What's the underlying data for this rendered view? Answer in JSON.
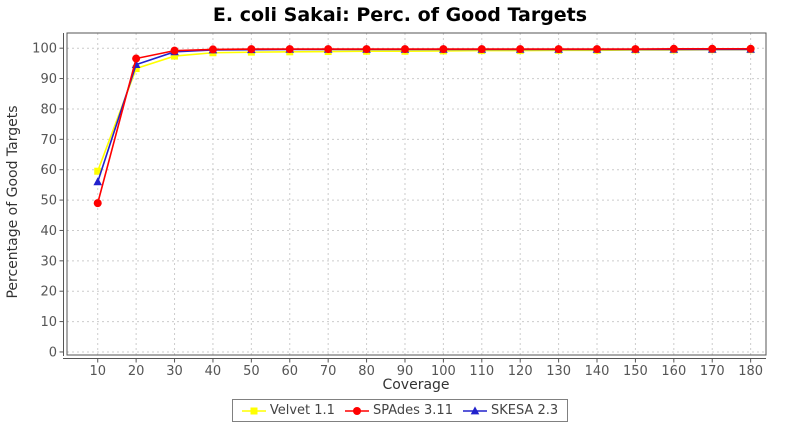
{
  "title": "E. coli Sakai: Perc. of Good Targets",
  "chart_data": {
    "type": "line",
    "title": "E. coli Sakai: Perc. of Good Targets",
    "xlabel": "Coverage",
    "ylabel": "Percentage of Good Targets",
    "x": [
      10,
      20,
      30,
      40,
      50,
      60,
      70,
      80,
      90,
      100,
      110,
      120,
      130,
      140,
      150,
      160,
      170,
      180
    ],
    "xticks": [
      10,
      20,
      30,
      40,
      50,
      60,
      70,
      80,
      90,
      100,
      110,
      120,
      130,
      140,
      150,
      160,
      170,
      180
    ],
    "yticks": [
      0,
      10,
      20,
      30,
      40,
      50,
      60,
      70,
      80,
      90,
      100
    ],
    "xlim": [
      2,
      184
    ],
    "ylim": [
      -1,
      105
    ],
    "grid": true,
    "legend_position": "bottom",
    "draw_order": [
      0,
      2,
      1
    ],
    "series": [
      {
        "name": "Velvet 1.1",
        "marker": "square",
        "color": "#FFFF00",
        "values": [
          59.5,
          93.3,
          97.4,
          98.5,
          98.7,
          98.8,
          98.9,
          99.0,
          99.0,
          99.1,
          99.2,
          99.2,
          99.3,
          99.3,
          99.4,
          99.4,
          99.5,
          99.5
        ]
      },
      {
        "name": "SPAdes 3.11",
        "marker": "circle",
        "color": "#FF0000",
        "values": [
          49.0,
          96.6,
          99.2,
          99.6,
          99.7,
          99.7,
          99.7,
          99.7,
          99.7,
          99.7,
          99.7,
          99.7,
          99.7,
          99.7,
          99.7,
          99.8,
          99.8,
          99.8
        ]
      },
      {
        "name": "SKESA 2.3",
        "marker": "triangle",
        "color": "#2222CC",
        "values": [
          56.0,
          94.6,
          98.8,
          99.4,
          99.5,
          99.6,
          99.6,
          99.6,
          99.6,
          99.6,
          99.6,
          99.6,
          99.6,
          99.6,
          99.6,
          99.6,
          99.6,
          99.6
        ]
      }
    ]
  }
}
